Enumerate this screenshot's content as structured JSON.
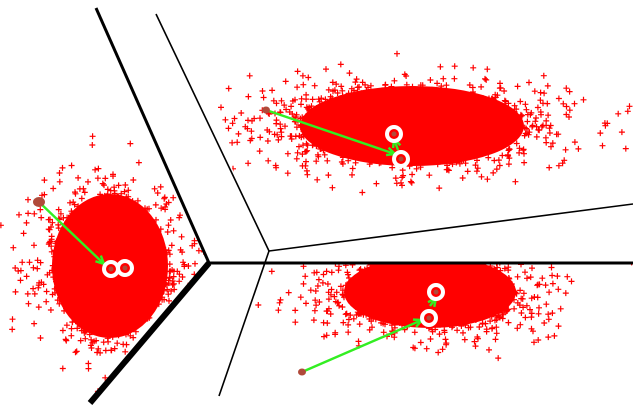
{
  "figure": {
    "background_color": "#ffffff",
    "point_marker": "plus-sign",
    "point_color": "#ff0000",
    "boundary_color": "#000000",
    "arrow_color": "#33ee22",
    "old_center_color": "#b04a3a",
    "new_center_ring_color": "#ffffff",
    "clusters": [
      {
        "id": "cluster-upper-right"
      },
      {
        "id": "cluster-left"
      },
      {
        "id": "cluster-lower-right"
      }
    ]
  }
}
